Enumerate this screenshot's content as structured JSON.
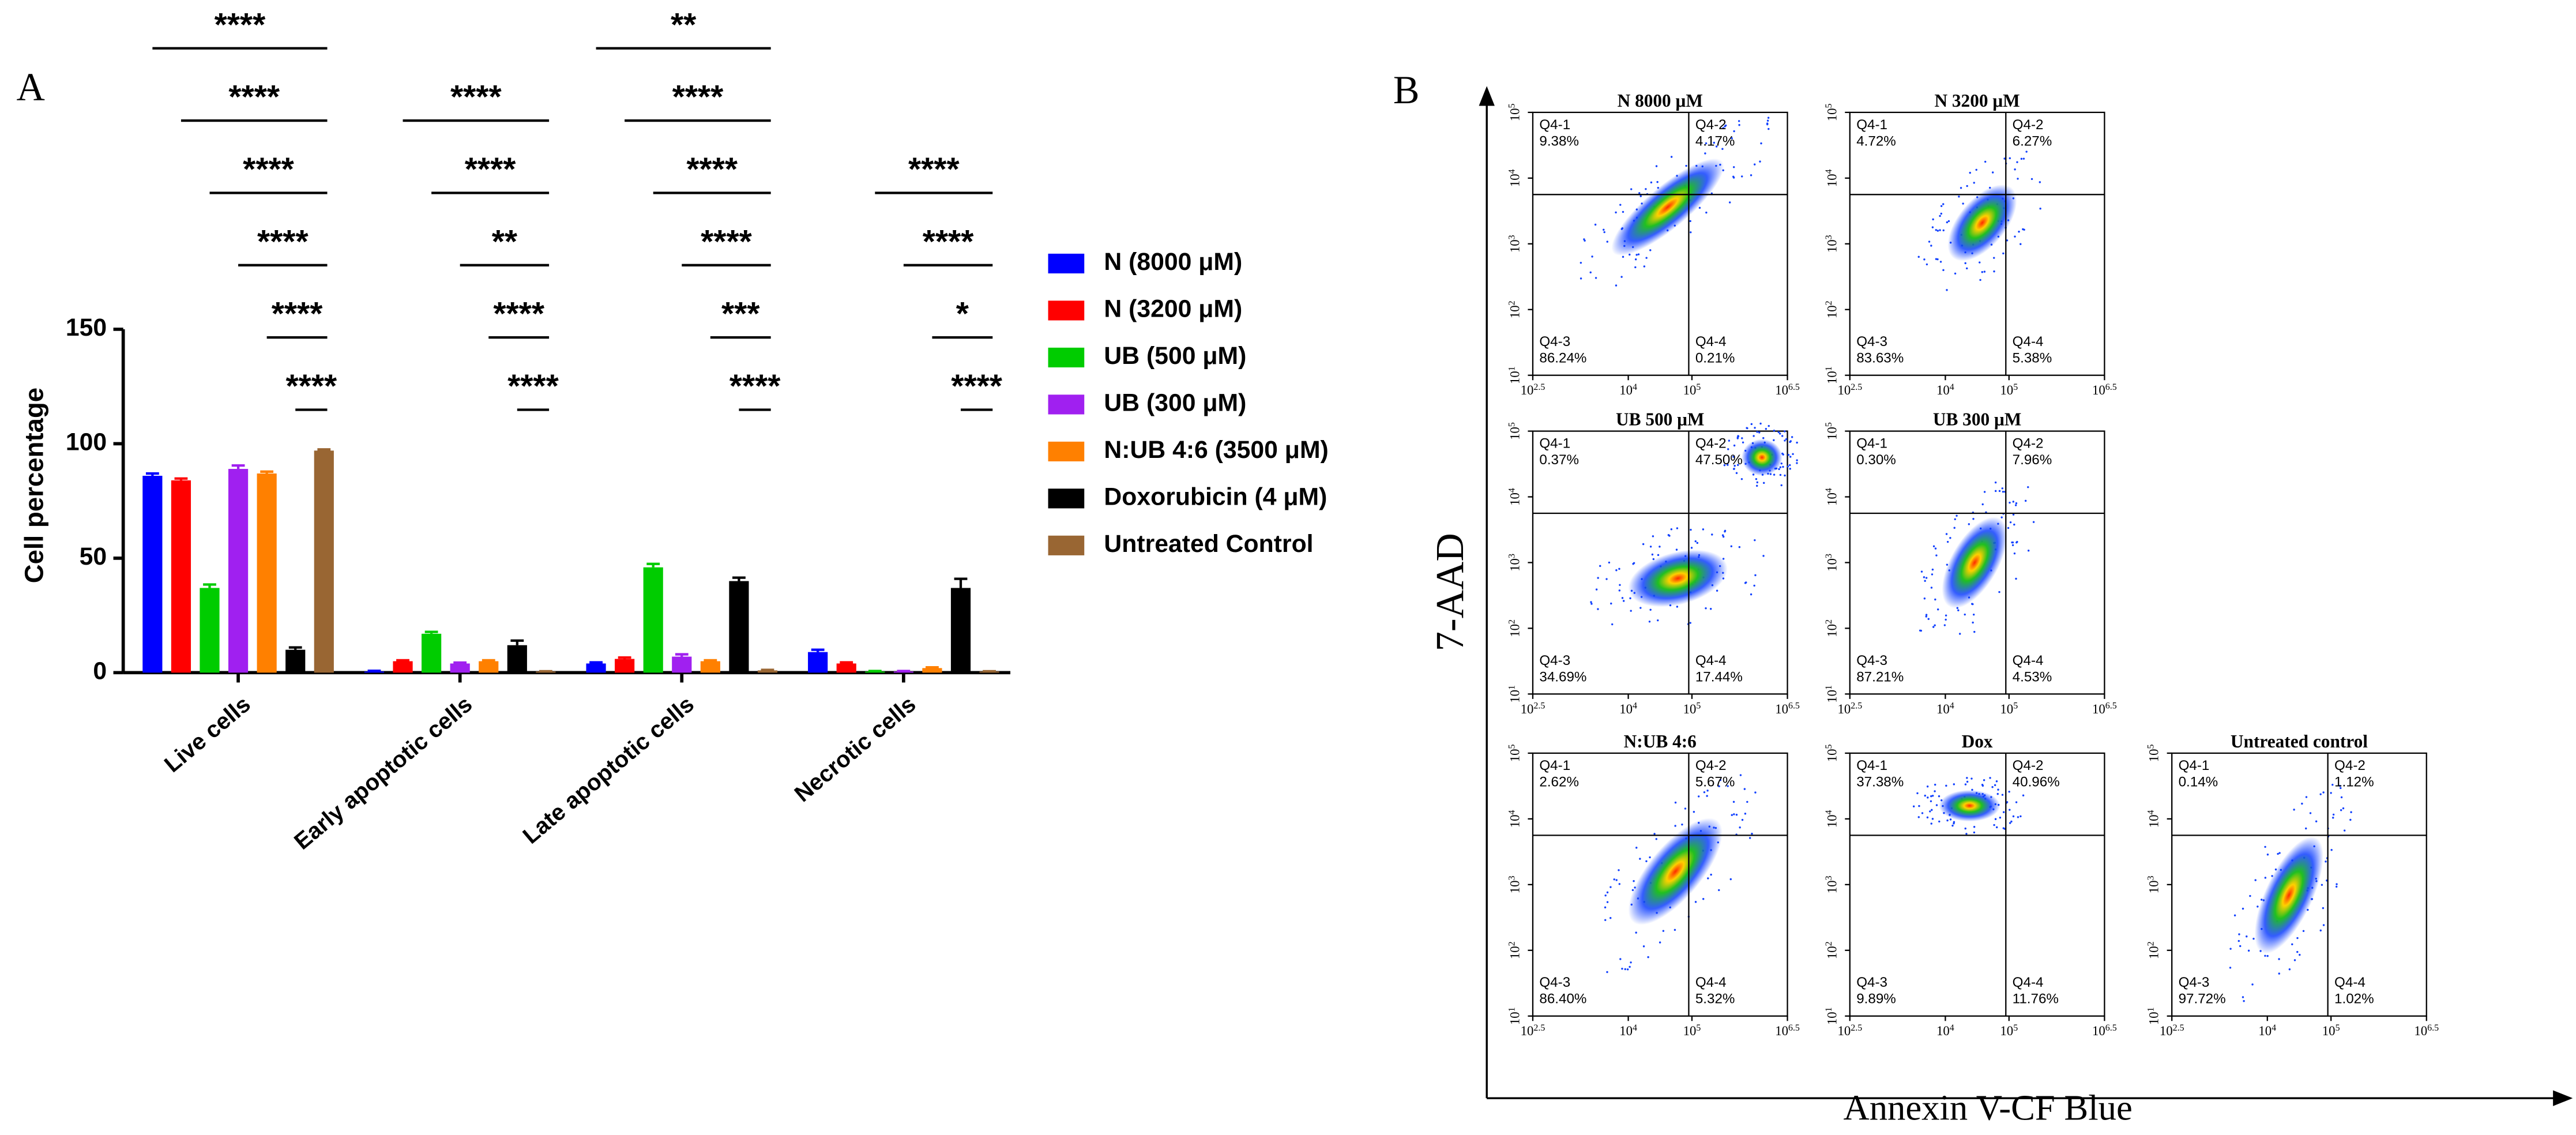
{
  "chart_data": {
    "type": "bar",
    "panel_label": "A",
    "ylabel": "Cell percentage",
    "categories": [
      "Live cells",
      "Early apoptotic cells",
      "Late apoptotic cells",
      "Necrotic cells"
    ],
    "series": [
      {
        "name": "N (8000 μM)",
        "color": "#0000ff",
        "values": [
          86,
          0.5,
          4,
          9
        ],
        "errors": [
          1,
          0.3,
          0.5,
          1
        ]
      },
      {
        "name": "N (3200 μM)",
        "color": "#ff0000",
        "values": [
          84,
          5,
          6,
          4
        ],
        "errors": [
          0.8,
          0.4,
          0.6,
          0.5
        ]
      },
      {
        "name": "UB (500 μM)",
        "color": "#00cc00",
        "values": [
          37,
          17,
          46,
          0.5
        ],
        "errors": [
          1.5,
          0.8,
          1.5,
          0.2
        ]
      },
      {
        "name": "UB (300 μM)",
        "color": "#a020f0",
        "values": [
          89,
          4,
          7,
          0.5
        ],
        "errors": [
          1.5,
          0.4,
          1,
          0.2
        ]
      },
      {
        "name": "N:UB 4:6 (3500 μM)",
        "color": "#ff8000",
        "values": [
          87,
          5,
          5,
          2
        ],
        "errors": [
          0.8,
          0.4,
          0.4,
          0.3
        ]
      },
      {
        "name": "Doxorubicin (4 μM)",
        "color": "#000000",
        "values": [
          10,
          12,
          40,
          37
        ],
        "errors": [
          1,
          2,
          1.5,
          4
        ]
      },
      {
        "name": "Untreated Control",
        "color": "#996633",
        "values": [
          97,
          0.5,
          1,
          0.5
        ],
        "errors": [
          0.5,
          0.1,
          0.2,
          0.1
        ]
      }
    ],
    "ylim": [
      0,
      150
    ],
    "yticks": [
      0,
      50,
      100,
      150
    ],
    "significance": [
      {
        "category": 0,
        "from": 0,
        "label": "****"
      },
      {
        "category": 0,
        "from": 1,
        "label": "****"
      },
      {
        "category": 0,
        "from": 2,
        "label": "****"
      },
      {
        "category": 0,
        "from": 3,
        "label": "****"
      },
      {
        "category": 0,
        "from": 4,
        "label": "****"
      },
      {
        "category": 0,
        "from": 5,
        "label": "****"
      },
      {
        "category": 1,
        "from": 1,
        "label": "****"
      },
      {
        "category": 1,
        "from": 2,
        "label": "****"
      },
      {
        "category": 1,
        "from": 3,
        "label": "**"
      },
      {
        "category": 1,
        "from": 4,
        "label": "****"
      },
      {
        "category": 1,
        "from": 5,
        "label": "****"
      },
      {
        "category": 2,
        "from": 0,
        "label": "**"
      },
      {
        "category": 2,
        "from": 1,
        "label": "****"
      },
      {
        "category": 2,
        "from": 2,
        "label": "****"
      },
      {
        "category": 2,
        "from": 3,
        "label": "****"
      },
      {
        "category": 2,
        "from": 4,
        "label": "***"
      },
      {
        "category": 2,
        "from": 5,
        "label": "****"
      },
      {
        "category": 3,
        "from": 2,
        "label": "****"
      },
      {
        "category": 3,
        "from": 3,
        "label": "****"
      },
      {
        "category": 3,
        "from": 4,
        "label": "*"
      },
      {
        "category": 3,
        "from": 5,
        "label": "****"
      }
    ]
  },
  "panel_b": {
    "panel_label": "B",
    "xlabel": "Annexin V-CF Blue",
    "ylabel": "7-AAD",
    "xlim": [
      2.5,
      6.5
    ],
    "ylim": [
      1,
      5
    ],
    "xticks": [
      {
        "value": 2.5,
        "label": "10^2.5"
      },
      {
        "value": 4,
        "label": "10^4"
      },
      {
        "value": 5,
        "label": "10^5"
      },
      {
        "value": 6.5,
        "label": "10^6.5"
      }
    ],
    "yticks": [
      {
        "value": 1,
        "label": "10^1"
      },
      {
        "value": 2,
        "label": "10^2"
      },
      {
        "value": 3,
        "label": "10^3"
      },
      {
        "value": 4,
        "label": "10^4"
      },
      {
        "value": 5,
        "label": "10^5"
      }
    ],
    "plots": [
      {
        "title": "N 8000 μM",
        "gate": [
          4.95,
          3.75
        ],
        "quadrants": [
          {
            "name": "Q4-1",
            "value": 9.38,
            "label": "9.38%"
          },
          {
            "name": "Q4-2",
            "value": 4.17,
            "label": "4.17%"
          },
          {
            "name": "Q4-3",
            "value": 86.24,
            "label": "86.24%"
          },
          {
            "name": "Q4-4",
            "value": 0.21,
            "label": "0.21%"
          }
        ]
      },
      {
        "title": "N 3200 μM",
        "gate": [
          4.95,
          3.75
        ],
        "quadrants": [
          {
            "name": "Q4-1",
            "value": 4.72,
            "label": "4.72%"
          },
          {
            "name": "Q4-2",
            "value": 6.27,
            "label": "6.27%"
          },
          {
            "name": "Q4-3",
            "value": 83.63,
            "label": "83.63%"
          },
          {
            "name": "Q4-4",
            "value": 5.38,
            "label": "5.38%"
          }
        ]
      },
      {
        "title": "UB 500 μM",
        "gate": [
          4.95,
          3.75
        ],
        "quadrants": [
          {
            "name": "Q4-1",
            "value": 0.37,
            "label": "0.37%"
          },
          {
            "name": "Q4-2",
            "value": 47.5,
            "label": "47.50%"
          },
          {
            "name": "Q4-3",
            "value": 34.69,
            "label": "34.69%"
          },
          {
            "name": "Q4-4",
            "value": 17.44,
            "label": "17.44%"
          }
        ]
      },
      {
        "title": "UB 300 μM",
        "gate": [
          4.95,
          3.75
        ],
        "quadrants": [
          {
            "name": "Q4-1",
            "value": 0.3,
            "label": "0.30%"
          },
          {
            "name": "Q4-2",
            "value": 7.96,
            "label": "7.96%"
          },
          {
            "name": "Q4-3",
            "value": 87.21,
            "label": "87.21%"
          },
          {
            "name": "Q4-4",
            "value": 4.53,
            "label": "4.53%"
          }
        ]
      },
      {
        "title": "N:UB 4:6",
        "gate": [
          4.95,
          3.75
        ],
        "quadrants": [
          {
            "name": "Q4-1",
            "value": 2.62,
            "label": "2.62%"
          },
          {
            "name": "Q4-2",
            "value": 5.67,
            "label": "5.67%"
          },
          {
            "name": "Q4-3",
            "value": 86.4,
            "label": "86.40%"
          },
          {
            "name": "Q4-4",
            "value": 5.32,
            "label": "5.32%"
          }
        ]
      },
      {
        "title": "Dox",
        "gate": [
          4.95,
          3.75
        ],
        "quadrants": [
          {
            "name": "Q4-1",
            "value": 37.38,
            "label": "37.38%"
          },
          {
            "name": "Q4-2",
            "value": 40.96,
            "label": "40.96%"
          },
          {
            "name": "Q4-3",
            "value": 9.89,
            "label": "9.89%"
          },
          {
            "name": "Q4-4",
            "value": 11.76,
            "label": "11.76%"
          }
        ]
      },
      {
        "title": "Untreated control",
        "gate": [
          4.95,
          3.75
        ],
        "quadrants": [
          {
            "name": "Q4-1",
            "value": 0.14,
            "label": "0.14%"
          },
          {
            "name": "Q4-2",
            "value": 1.12,
            "label": "1.12%"
          },
          {
            "name": "Q4-3",
            "value": 97.72,
            "label": "97.72%"
          },
          {
            "name": "Q4-4",
            "value": 1.02,
            "label": "1.02%"
          }
        ]
      }
    ]
  }
}
